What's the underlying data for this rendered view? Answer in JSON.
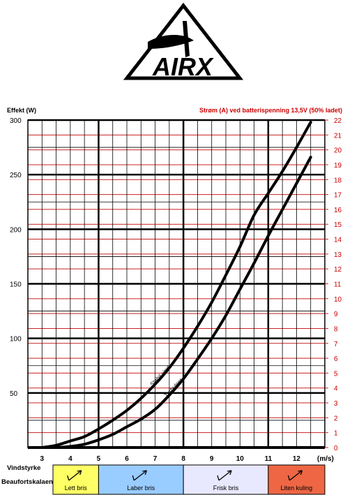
{
  "logo": {
    "text": "AIRX"
  },
  "labels": {
    "row_vindstyrke": "Vindstyrke",
    "row_beaufort": "Beaufortskalaen"
  },
  "colors": {
    "grid_red": "#cc2222",
    "grid_black": "#000000",
    "right_axis_text": "#cc0000",
    "curve": "#000000"
  },
  "beaufort": [
    {
      "label": "Lett bris",
      "from": 3,
      "to": 5,
      "color": "#ffff66",
      "icon": "wind-barb-icon"
    },
    {
      "label": "Laber bris",
      "from": 5,
      "to": 8,
      "color": "#99ccff",
      "icon": "wind-barb-icon"
    },
    {
      "label": "Frisk bris",
      "from": 8,
      "to": 11,
      "color": "#e8e8ff",
      "icon": "wind-barb-icon"
    },
    {
      "label": "Liten kuling",
      "from": 11,
      "to": 13,
      "color": "#ee6644",
      "icon": "wind-barb-icon"
    }
  ],
  "chart_data": {
    "type": "line",
    "xlabel": "(m/s)",
    "ylabel": "Effekt (W)",
    "y2label": "Strøm (A) ved batterispenning 13,5V (50% ladet)",
    "xlim": [
      2.5,
      13
    ],
    "ylim": [
      0,
      300
    ],
    "y2lim": [
      0,
      22
    ],
    "x_ticks": [
      3,
      4,
      5,
      6,
      7,
      8,
      9,
      10,
      11,
      12
    ],
    "y_ticks": [
      50,
      100,
      150,
      200,
      250,
      300
    ],
    "y2_ticks": [
      0,
      1,
      2,
      3,
      4,
      5,
      6,
      7,
      8,
      9,
      10,
      11,
      12,
      13,
      14,
      15,
      16,
      17,
      18,
      19,
      20,
      21,
      22
    ],
    "series": [
      {
        "name": "Stabil vind",
        "x": [
          3,
          3.5,
          4,
          4.5,
          5,
          5.5,
          6,
          6.5,
          7,
          7.5,
          8,
          8.5,
          9,
          9.5,
          10,
          10.5,
          11,
          11.5,
          12,
          12.5
        ],
        "y": [
          0,
          2,
          6,
          10,
          17,
          25,
          34,
          45,
          58,
          73,
          91,
          111,
          133,
          158,
          184,
          213,
          233,
          253,
          275,
          298
        ]
      },
      {
        "name": "Turbulent",
        "x": [
          3.5,
          4,
          4.5,
          5,
          5.5,
          6,
          6.5,
          7,
          7.5,
          8,
          8.5,
          9,
          9.5,
          10,
          10.5,
          11,
          11.5,
          12,
          12.5
        ],
        "y": [
          0,
          1,
          3,
          7,
          12,
          19,
          26,
          35,
          48,
          63,
          81,
          100,
          121,
          145,
          169,
          194,
          218,
          242,
          266
        ]
      }
    ]
  }
}
